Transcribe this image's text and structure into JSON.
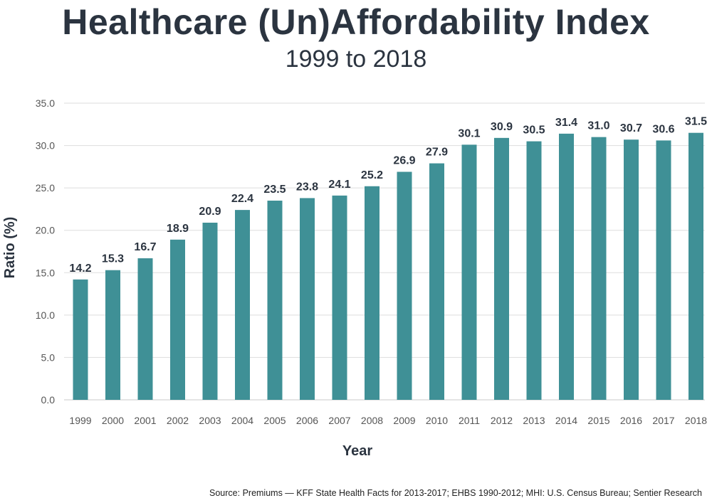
{
  "chart_data": {
    "type": "bar",
    "title": "Healthcare (Un)Affordability Index",
    "subtitle": "1999 to 2018",
    "xlabel": "Year",
    "ylabel": "Ratio (%)",
    "ylim": [
      0,
      35
    ],
    "yticks": [
      "0.0",
      "5.0",
      "10.0",
      "15.0",
      "20.0",
      "25.0",
      "30.0",
      "35.0"
    ],
    "grid": true,
    "categories": [
      "1999",
      "2000",
      "2001",
      "2002",
      "2003",
      "2004",
      "2005",
      "2006",
      "2007",
      "2008",
      "2009",
      "2010",
      "2011",
      "2012",
      "2013",
      "2014",
      "2015",
      "2016",
      "2017",
      "2018"
    ],
    "values": [
      14.2,
      15.3,
      16.7,
      18.9,
      20.9,
      22.4,
      23.5,
      23.8,
      24.1,
      25.2,
      26.9,
      27.9,
      30.1,
      30.9,
      30.5,
      31.4,
      31.0,
      30.7,
      30.6,
      31.5
    ],
    "value_labels": [
      "14.2",
      "15.3",
      "16.7",
      "18.9",
      "20.9",
      "22.4",
      "23.5",
      "23.8",
      "24.1",
      "25.2",
      "26.9",
      "27.9",
      "30.1",
      "30.9",
      "30.5",
      "31.4",
      "31.0",
      "30.7",
      "30.6",
      "31.5"
    ],
    "bar_color": "#3f9096",
    "source": "Source: Premiums — KFF State Health Facts for 2013-2017; EHBS 1990-2012; MHI: U.S. Census Bureau; Sentier Research"
  }
}
